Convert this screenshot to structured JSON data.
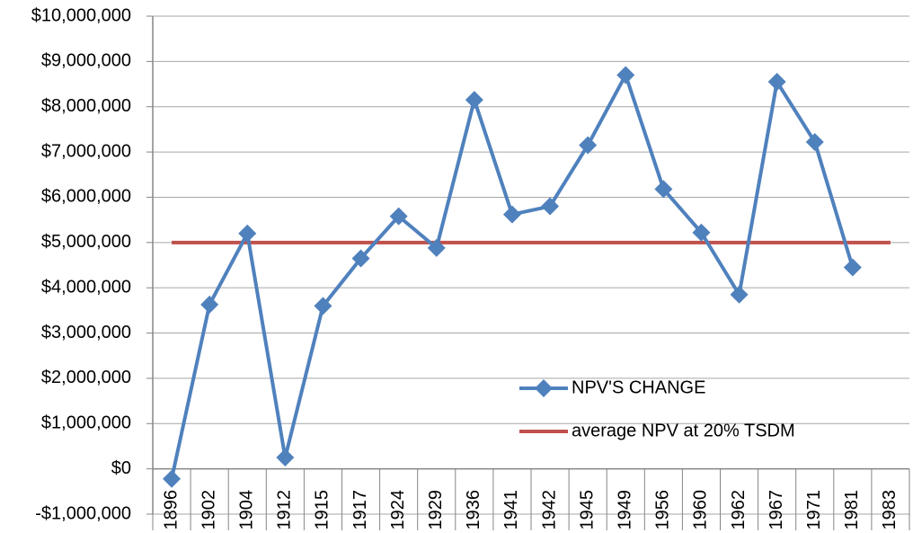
{
  "chart_data": {
    "type": "line",
    "categories": [
      "1896",
      "1902",
      "1904",
      "1912",
      "1915",
      "1917",
      "1924",
      "1929",
      "1936",
      "1941",
      "1942",
      "1945",
      "1949",
      "1956",
      "1960",
      "1962",
      "1967",
      "1971",
      "1981",
      "1983"
    ],
    "series": [
      {
        "name": "NPV'S CHANGE",
        "color": "#4f81bd",
        "marker": "diamond",
        "values": [
          -220000,
          3630000,
          5200000,
          250000,
          3600000,
          4650000,
          5580000,
          4880000,
          8150000,
          5620000,
          5800000,
          7150000,
          8700000,
          6180000,
          5220000,
          3850000,
          8550000,
          7220000,
          4450000,
          null
        ]
      },
      {
        "name": "average NPV at 20% TSDM",
        "color": "#c0504d",
        "values": [
          5000000,
          5000000,
          5000000,
          5000000,
          5000000,
          5000000,
          5000000,
          5000000,
          5000000,
          5000000,
          5000000,
          5000000,
          5000000,
          5000000,
          5000000,
          5000000,
          5000000,
          5000000,
          5000000,
          5000000
        ]
      }
    ],
    "ylim": [
      -1000000,
      10000000
    ],
    "yticks": [
      {
        "value": -1000000,
        "label": "-$1,000,000"
      },
      {
        "value": 0,
        "label": "$0"
      },
      {
        "value": 1000000,
        "label": "$1,000,000"
      },
      {
        "value": 2000000,
        "label": "$2,000,000"
      },
      {
        "value": 3000000,
        "label": "$3,000,000"
      },
      {
        "value": 4000000,
        "label": "$4,000,000"
      },
      {
        "value": 5000000,
        "label": "$5,000,000"
      },
      {
        "value": 6000000,
        "label": "$6,000,000"
      },
      {
        "value": 7000000,
        "label": "$7,000,000"
      },
      {
        "value": 8000000,
        "label": "$8,000,000"
      },
      {
        "value": 9000000,
        "label": "$9,000,000"
      },
      {
        "value": 10000000,
        "label": "$10,000,000"
      }
    ],
    "grid": true,
    "legend": "inside"
  }
}
